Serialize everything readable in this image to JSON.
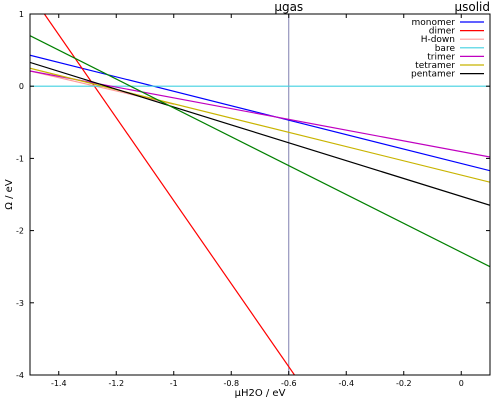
{
  "chart_data": {
    "type": "line",
    "title": "",
    "xlabel": "μH2O / eV",
    "ylabel": "Ω / eV",
    "xlim": [
      -1.5,
      0.1
    ],
    "ylim": [
      -4,
      1
    ],
    "xticks": [
      {
        "value": -1.4,
        "label": "-1.4"
      },
      {
        "value": -1.2,
        "label": "-1.2"
      },
      {
        "value": -1.0,
        "label": "-1"
      },
      {
        "value": -0.8,
        "label": "-0.8"
      },
      {
        "value": -0.6,
        "label": "-0.6"
      },
      {
        "value": -0.4,
        "label": "-0.4"
      },
      {
        "value": -0.2,
        "label": "-0.2"
      },
      {
        "value": 0.0,
        "label": "0"
      }
    ],
    "yticks": [
      {
        "value": 1,
        "label": "1"
      },
      {
        "value": 0,
        "label": "0"
      },
      {
        "value": -1,
        "label": "-1"
      },
      {
        "value": -2,
        "label": "-2"
      },
      {
        "value": -3,
        "label": "-3"
      },
      {
        "value": -4,
        "label": "-4"
      }
    ],
    "grid": false,
    "legend_position": "top-right",
    "vline": {
      "x": -0.6,
      "label": "μgas",
      "color": "#8080b0"
    },
    "right_label": "μsolid",
    "series": [
      {
        "name": "monomer",
        "color": "#0000ff",
        "x": [
          -1.5,
          0.1
        ],
        "y": [
          0.43,
          -1.17
        ]
      },
      {
        "name": "dimer",
        "color": "#ff0000",
        "x": [
          -1.45,
          -0.58
        ],
        "y": [
          1.0,
          -4.0
        ]
      },
      {
        "name": "H-down",
        "color": "#ff9a9a",
        "x": [
          -1.5,
          -1.0
        ],
        "y": [
          0.21,
          -0.25
        ]
      },
      {
        "name": "bare",
        "color": "#40d0e0",
        "x": [
          -1.5,
          0.1
        ],
        "y": [
          0.0,
          0.0
        ]
      },
      {
        "name": "trimer",
        "color": "#c000c0",
        "x": [
          -1.5,
          0.1
        ],
        "y": [
          0.21,
          -0.98
        ]
      },
      {
        "name": "tetramer",
        "color": "#c8b400",
        "x": [
          -1.5,
          0.1
        ],
        "y": [
          0.25,
          -1.33
        ]
      },
      {
        "name": "pentamer",
        "color": "#000000",
        "x": [
          -1.5,
          0.1
        ],
        "y": [
          0.33,
          -1.65
        ]
      },
      {
        "name": "",
        "color": "#008000",
        "x": [
          -1.5,
          0.1
        ],
        "y": [
          0.7,
          -2.5
        ]
      }
    ]
  }
}
